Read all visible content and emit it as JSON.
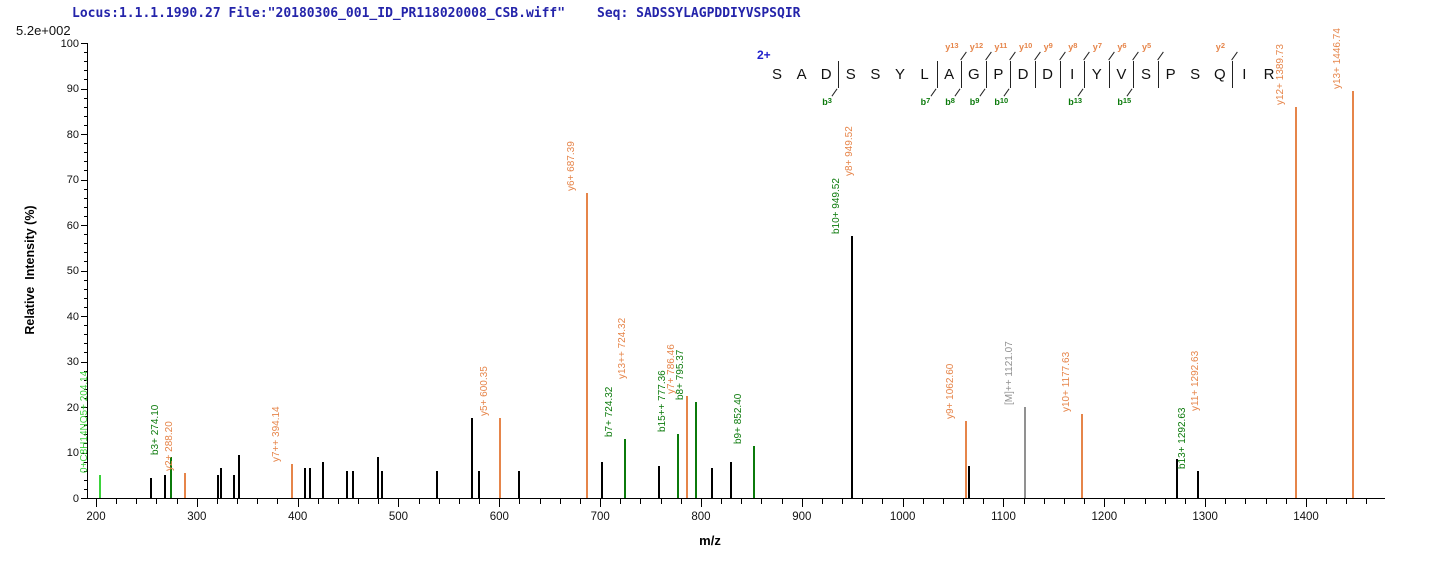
{
  "header": {
    "locus_file": "Locus:1.1.1.1990.27 File:\"20180306_001_ID_PR118020008_CSB.wiff\"",
    "seq_line": "Seq: SADSSYLAGPDDIYVSPSQIR"
  },
  "scale_note": "5.2e+002",
  "colors": {
    "header_blue": "#2424aa",
    "charge_blue": "#2020cc",
    "y_ion_orange": "#e6854a",
    "b_ion_green": "#0b7a0b",
    "bright_green": "#3bd33b",
    "precursor_gray": "#919191",
    "peak_black": "#000000",
    "axis_black": "#000000"
  },
  "chart_data": {
    "type": "bar",
    "subtype": "ms2-mass-spectrum",
    "title": "",
    "xlabel": "m/z",
    "ylabel": "Relative  Intensity (%)",
    "xlim": [
      191,
      1480
    ],
    "ylim": [
      0,
      100
    ],
    "x_major_ticks": [
      200,
      300,
      400,
      500,
      600,
      700,
      800,
      900,
      1000,
      1100,
      1200,
      1300,
      1400
    ],
    "x_minor_step": 20,
    "y_major_ticks": [
      0,
      10,
      20,
      30,
      40,
      50,
      60,
      70,
      80,
      90,
      100
    ],
    "y_minor_step": 2,
    "grid": false,
    "legend": "none",
    "peptide": {
      "charge_label": "2+",
      "sequence": "SADSSYLAGPDDIYVSPSQIR",
      "y_ions": [
        {
          "series": "y",
          "num": 13,
          "bond": 8
        },
        {
          "series": "y",
          "num": 12,
          "bond": 9
        },
        {
          "series": "y",
          "num": 11,
          "bond": 10
        },
        {
          "series": "y",
          "num": 10,
          "bond": 11
        },
        {
          "series": "y",
          "num": 9,
          "bond": 12
        },
        {
          "series": "y",
          "num": 8,
          "bond": 13
        },
        {
          "series": "y",
          "num": 7,
          "bond": 14
        },
        {
          "series": "y",
          "num": 6,
          "bond": 15
        },
        {
          "series": "y",
          "num": 5,
          "bond": 16
        },
        {
          "series": "y",
          "num": 2,
          "bond": 19
        }
      ],
      "b_ions": [
        {
          "series": "b",
          "num": 3,
          "bond": 3
        },
        {
          "series": "b",
          "num": 7,
          "bond": 7
        },
        {
          "series": "b",
          "num": 8,
          "bond": 8
        },
        {
          "series": "b",
          "num": 9,
          "bond": 9
        },
        {
          "series": "b",
          "num": 10,
          "bond": 10
        },
        {
          "series": "b",
          "num": 13,
          "bond": 13
        },
        {
          "series": "b",
          "num": 15,
          "bond": 15
        }
      ]
    },
    "peaks": [
      {
        "mz": 204.14,
        "intensity": 5,
        "series": "green",
        "labels": [
          {
            "text": "0+C8H14NO5+ 204.14",
            "series": "green"
          }
        ]
      },
      {
        "mz": 255,
        "intensity": 4.5,
        "series": "black",
        "labels": []
      },
      {
        "mz": 268,
        "intensity": 5,
        "series": "black",
        "labels": []
      },
      {
        "mz": 274.1,
        "intensity": 9,
        "series": "b",
        "labels": [
          {
            "text": "b3+ 274.10",
            "series": "b"
          }
        ]
      },
      {
        "mz": 288.2,
        "intensity": 5.5,
        "series": "y",
        "labels": [
          {
            "text": "y2+ 288.20",
            "series": "y"
          }
        ]
      },
      {
        "mz": 321,
        "intensity": 5,
        "series": "black",
        "labels": []
      },
      {
        "mz": 324,
        "intensity": 6.5,
        "series": "black",
        "labels": []
      },
      {
        "mz": 337,
        "intensity": 5,
        "series": "black",
        "labels": []
      },
      {
        "mz": 342,
        "intensity": 9.5,
        "series": "black",
        "labels": []
      },
      {
        "mz": 394.14,
        "intensity": 7.5,
        "series": "y",
        "labels": [
          {
            "text": "y7++ 394.14",
            "series": "y"
          }
        ]
      },
      {
        "mz": 407,
        "intensity": 6.5,
        "series": "black",
        "labels": []
      },
      {
        "mz": 412,
        "intensity": 6.5,
        "series": "black",
        "labels": []
      },
      {
        "mz": 425,
        "intensity": 8,
        "series": "black",
        "labels": []
      },
      {
        "mz": 449,
        "intensity": 6,
        "series": "black",
        "labels": []
      },
      {
        "mz": 455,
        "intensity": 6,
        "series": "black",
        "labels": []
      },
      {
        "mz": 480,
        "intensity": 9,
        "series": "black",
        "labels": []
      },
      {
        "mz": 484,
        "intensity": 6,
        "series": "black",
        "labels": []
      },
      {
        "mz": 538,
        "intensity": 6,
        "series": "black",
        "labels": []
      },
      {
        "mz": 573,
        "intensity": 17.5,
        "series": "black",
        "labels": []
      },
      {
        "mz": 580,
        "intensity": 6,
        "series": "black",
        "labels": []
      },
      {
        "mz": 600.35,
        "intensity": 17.5,
        "series": "y",
        "labels": [
          {
            "text": "y5+ 600.35",
            "series": "y"
          }
        ]
      },
      {
        "mz": 620,
        "intensity": 6,
        "series": "black",
        "labels": []
      },
      {
        "mz": 687.39,
        "intensity": 67,
        "series": "y",
        "labels": [
          {
            "text": "y6+ 687.39",
            "series": "y"
          }
        ]
      },
      {
        "mz": 702,
        "intensity": 8,
        "series": "black",
        "labels": []
      },
      {
        "mz": 724.32,
        "intensity": 13,
        "series": "b",
        "labels": [
          {
            "text": "b7+ 724.32",
            "series": "b"
          },
          {
            "text": "y13++ 724.32",
            "series": "y"
          }
        ]
      },
      {
        "mz": 758,
        "intensity": 7,
        "series": "black",
        "labels": []
      },
      {
        "mz": 777.36,
        "intensity": 14,
        "series": "b",
        "labels": [
          {
            "text": "b15++ 777.36",
            "series": "b"
          }
        ]
      },
      {
        "mz": 786.46,
        "intensity": 22.5,
        "series": "y",
        "labels": [
          {
            "text": "y7+ 786.46",
            "series": "y"
          }
        ]
      },
      {
        "mz": 795.37,
        "intensity": 21,
        "series": "b",
        "labels": [
          {
            "text": "b8+ 795.37",
            "series": "b"
          }
        ]
      },
      {
        "mz": 811,
        "intensity": 6.5,
        "series": "black",
        "labels": []
      },
      {
        "mz": 830,
        "intensity": 8,
        "series": "black",
        "labels": []
      },
      {
        "mz": 852.4,
        "intensity": 11.5,
        "series": "b",
        "labels": [
          {
            "text": "b9+ 852.40",
            "series": "b"
          }
        ]
      },
      {
        "mz": 949.52,
        "intensity": 57.5,
        "series": "black",
        "labels": [
          {
            "text": "b10+ 949.52",
            "series": "b"
          },
          {
            "text": "y8+ 949.52",
            "series": "y"
          }
        ]
      },
      {
        "mz": 1062.6,
        "intensity": 17,
        "series": "y",
        "labels": [
          {
            "text": "y9+ 1062.60",
            "series": "y"
          }
        ]
      },
      {
        "mz": 1065.5,
        "intensity": 7,
        "series": "black",
        "labels": []
      },
      {
        "mz": 1121.07,
        "intensity": 20,
        "series": "gray",
        "labels": [
          {
            "text": "[M]++ 1121.07",
            "series": "gray"
          }
        ]
      },
      {
        "mz": 1177.63,
        "intensity": 18.5,
        "series": "y",
        "labels": [
          {
            "text": "y10+ 1177.63",
            "series": "y"
          }
        ]
      },
      {
        "mz": 1272,
        "intensity": 8.5,
        "series": "black",
        "labels": []
      },
      {
        "mz": 1292.63,
        "intensity": 6,
        "series": "black",
        "labels": [
          {
            "text": "b13+ 1292.63",
            "series": "b"
          },
          {
            "text": "y11+ 1292.63",
            "series": "y"
          }
        ]
      },
      {
        "mz": 1389.73,
        "intensity": 86,
        "series": "y",
        "labels": [
          {
            "text": "y12+ 1389.73",
            "series": "y"
          }
        ]
      },
      {
        "mz": 1446.74,
        "intensity": 89.5,
        "series": "y",
        "labels": [
          {
            "text": "y13+ 1446.74",
            "series": "y"
          }
        ]
      }
    ]
  }
}
